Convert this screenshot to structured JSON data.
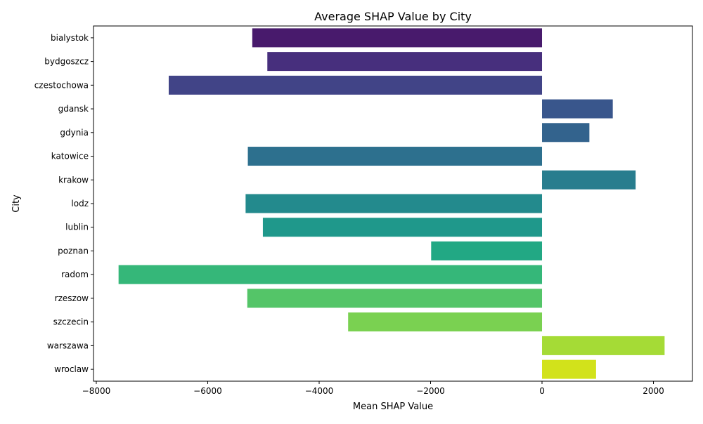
{
  "chart_data": {
    "type": "bar",
    "orientation": "horizontal",
    "title": "Average SHAP Value by City",
    "xlabel": "Mean SHAP Value",
    "ylabel": "City",
    "xlim": [
      -8050,
      2700
    ],
    "xticks": [
      -8000,
      -6000,
      -4000,
      -2000,
      0,
      2000
    ],
    "xtick_labels": [
      "−8000",
      "−6000",
      "−4000",
      "−2000",
      "0",
      "2000"
    ],
    "grid": false,
    "categories": [
      "bialystok",
      "bydgoszcz",
      "czestochowa",
      "gdansk",
      "gdynia",
      "katowice",
      "krakow",
      "lodz",
      "lublin",
      "poznan",
      "radom",
      "rzeszow",
      "szczecin",
      "warszawa",
      "wroclaw"
    ],
    "values": [
      -5200,
      -4930,
      -6700,
      1270,
      850,
      -5280,
      1680,
      -5320,
      -5010,
      -1990,
      -7600,
      -5290,
      -3480,
      2200,
      970
    ],
    "colors": [
      "#481a6c",
      "#472f7d",
      "#414487",
      "#39568c",
      "#33638d",
      "#2d708e",
      "#287d8e",
      "#238a8d",
      "#1f988b",
      "#22a884",
      "#35b779",
      "#54c568",
      "#7ad151",
      "#a5db36",
      "#d2e21b"
    ]
  }
}
